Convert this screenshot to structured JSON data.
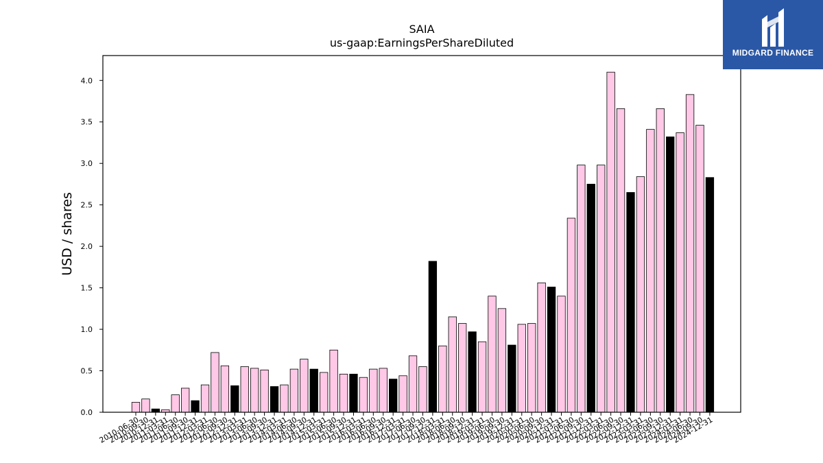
{
  "brand": {
    "name": "MIDGARD FINANCE",
    "background": "#2b58a6"
  },
  "chart_data": {
    "type": "bar",
    "title": "SAIA",
    "subtitle": "us-gaap:EarningsPerShareDiluted",
    "ylabel": "USD / shares",
    "xlabel": "",
    "ylim": [
      0,
      4.3
    ],
    "yticks": [
      0.0,
      0.5,
      1.0,
      1.5,
      2.0,
      2.5,
      3.0,
      3.5,
      4.0
    ],
    "grid": false,
    "colors": {
      "quarter": "#ffc8e6",
      "annual": "#000000",
      "edge": "#000000"
    },
    "categories": [
      "2010-06-30",
      "2010-09-30",
      "2010-12-31",
      "2011-03-31",
      "2011-06-30",
      "2011-09-30",
      "2011-12-31",
      "2012-03-31",
      "2012-06-30",
      "2012-09-30",
      "2012-12-31",
      "2013-03-31",
      "2013-06-30",
      "2013-09-30",
      "2013-12-31",
      "2014-03-31",
      "2014-06-30",
      "2014-09-30",
      "2014-12-31",
      "2015-03-31",
      "2015-06-30",
      "2015-09-30",
      "2015-12-31",
      "2016-03-31",
      "2016-06-30",
      "2016-09-30",
      "2016-12-31",
      "2017-03-31",
      "2017-06-30",
      "2017-09-30",
      "2017-12-31",
      "2018-03-31",
      "2018-06-30",
      "2018-09-30",
      "2018-12-31",
      "2019-03-31",
      "2019-06-30",
      "2019-09-30",
      "2019-12-31",
      "2020-03-31",
      "2020-06-30",
      "2020-09-30",
      "2020-12-31",
      "2021-03-31",
      "2021-06-30",
      "2021-09-30",
      "2021-12-31",
      "2022-03-31",
      "2022-06-30",
      "2022-09-30",
      "2022-12-31",
      "2023-03-31",
      "2023-06-30",
      "2023-09-30",
      "2023-12-31",
      "2024-03-31",
      "2024-06-30",
      "2024-09-30",
      "2024-12-31"
    ],
    "values": [
      0.12,
      0.16,
      0.04,
      0.03,
      0.21,
      0.29,
      0.14,
      0.33,
      0.72,
      0.56,
      0.32,
      0.55,
      0.53,
      0.51,
      0.31,
      0.33,
      0.52,
      0.64,
      0.52,
      0.48,
      0.75,
      0.46,
      0.46,
      0.42,
      0.52,
      0.53,
      0.4,
      0.44,
      0.68,
      0.55,
      1.82,
      0.8,
      1.15,
      1.07,
      0.97,
      0.85,
      1.4,
      1.25,
      0.81,
      1.06,
      1.07,
      1.56,
      1.51,
      1.4,
      2.34,
      2.98,
      2.75,
      2.98,
      4.1,
      3.66,
      2.65,
      2.84,
      3.41,
      3.66,
      3.32,
      3.37,
      3.83,
      3.46,
      2.83
    ],
    "bar_kind": [
      "q",
      "q",
      "a",
      "q",
      "q",
      "q",
      "a",
      "q",
      "q",
      "q",
      "a",
      "q",
      "q",
      "q",
      "a",
      "q",
      "q",
      "q",
      "a",
      "q",
      "q",
      "q",
      "a",
      "q",
      "q",
      "q",
      "a",
      "q",
      "q",
      "q",
      "a",
      "q",
      "q",
      "q",
      "a",
      "q",
      "q",
      "q",
      "a",
      "q",
      "q",
      "q",
      "a",
      "q",
      "q",
      "q",
      "a",
      "q",
      "q",
      "q",
      "a",
      "q",
      "q",
      "q",
      "a",
      "q",
      "q",
      "q",
      "a"
    ]
  }
}
